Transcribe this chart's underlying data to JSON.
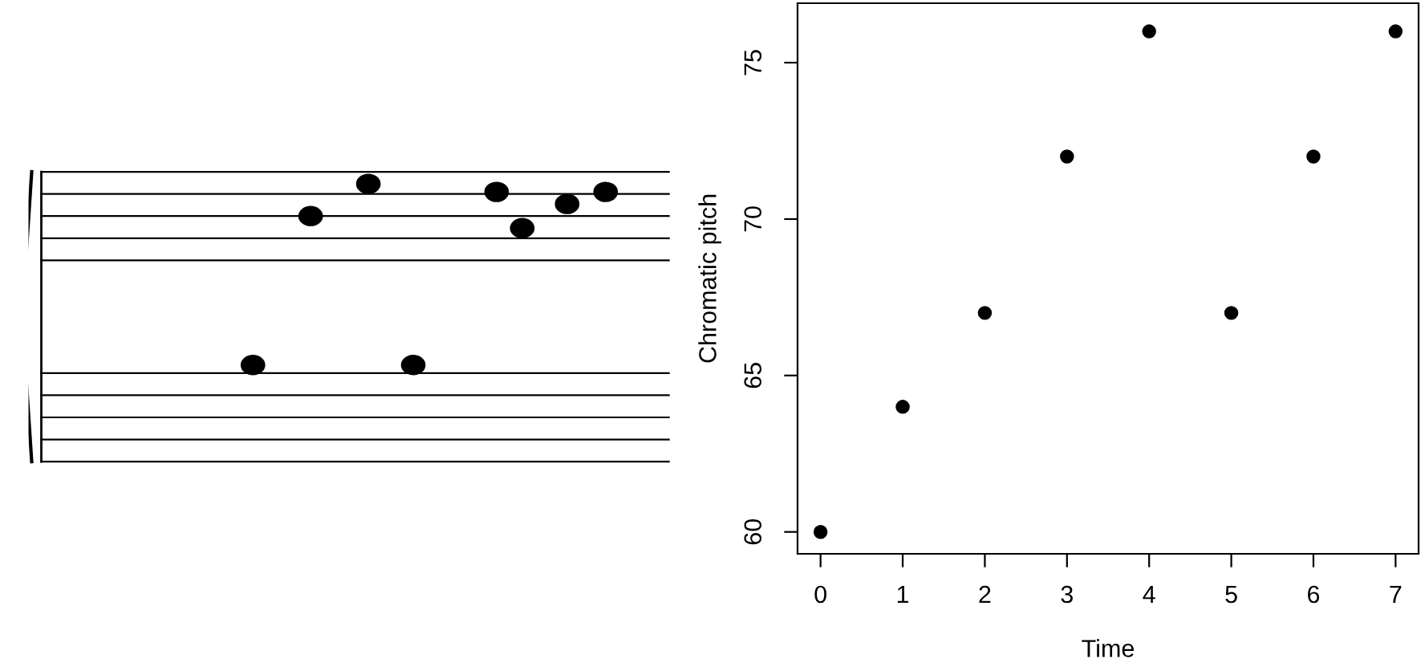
{
  "chart_data": {
    "type": "scatter",
    "xlabel": "Time",
    "ylabel": "Chromatic pitch",
    "x": [
      0,
      1,
      2,
      3,
      4,
      5,
      6,
      7
    ],
    "series": [
      {
        "color": "#000000",
        "values": [
          60,
          64,
          67,
          72,
          76,
          67,
          72,
          76
        ]
      }
    ],
    "marker": "circle",
    "xlim": [
      -0.28,
      7.28
    ],
    "ylim": [
      59.3,
      76.9
    ],
    "xticks": [
      0,
      1,
      2,
      3,
      4,
      5,
      6,
      7
    ],
    "yticks": [
      60,
      65,
      70,
      75
    ],
    "grid": false,
    "legend": false
  }
}
